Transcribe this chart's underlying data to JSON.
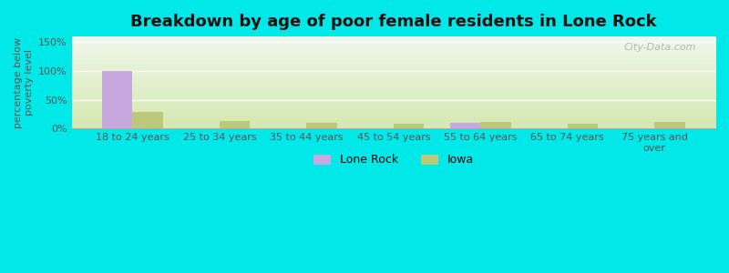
{
  "title": "Breakdown by age of poor female residents in Lone Rock",
  "categories": [
    "18 to 24 years",
    "25 to 34 years",
    "35 to 44 years",
    "45 to 54 years",
    "55 to 64 years",
    "65 to 74 years",
    "75 years and\nover"
  ],
  "lone_rock": [
    100,
    0,
    0,
    0,
    10,
    0,
    0
  ],
  "iowa": [
    28,
    13,
    10,
    8,
    11,
    8,
    12
  ],
  "lone_rock_color": "#c9a8e0",
  "iowa_color": "#bcc87a",
  "bg_color": "#00e8e8",
  "plot_bg_bottom": "#d4e8b0",
  "plot_bg_top": "#f0f8ec",
  "ylabel": "percentage below\npoverty level",
  "ylim": [
    0,
    160
  ],
  "yticks": [
    0,
    50,
    100,
    150
  ],
  "ytick_labels": [
    "0%",
    "50%",
    "100%",
    "150%"
  ],
  "bar_width": 0.35,
  "title_fontsize": 13,
  "axis_fontsize": 8,
  "legend_fontsize": 9,
  "watermark": "City-Data.com"
}
